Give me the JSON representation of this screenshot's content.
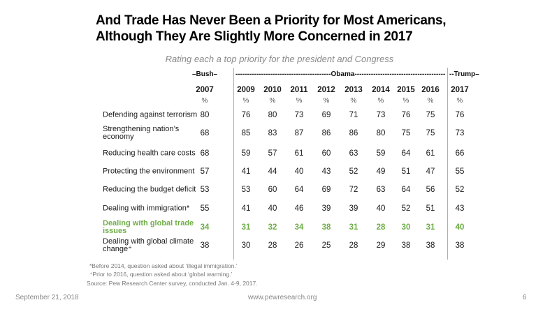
{
  "title_line1": "And Trade Has Never Been a Priority for Most Americans,",
  "title_line2": "Although They Are Slightly More Concerned in 2017",
  "subtitle": "Rating each a top priority for the president and Congress",
  "chart_data": {
    "type": "table",
    "groups": [
      "–Bush–",
      "-----------------------------------------Obama----------------------------------------",
      "--Trump–"
    ],
    "columns": [
      "2007",
      "2009",
      "2010",
      "2011",
      "2012",
      "2013",
      "2014",
      "2015",
      "2016",
      "2017"
    ],
    "unit": "%",
    "highlight_color": "#6fae47",
    "rows": [
      {
        "label": "Defending against terrorism",
        "values": [
          80,
          76,
          80,
          73,
          69,
          71,
          73,
          76,
          75,
          76
        ]
      },
      {
        "label": "Strengthening nation’s economy",
        "values": [
          68,
          85,
          83,
          87,
          86,
          86,
          80,
          75,
          75,
          73
        ]
      },
      {
        "label": "Reducing health care costs",
        "values": [
          68,
          59,
          57,
          61,
          60,
          63,
          59,
          64,
          61,
          66
        ]
      },
      {
        "label": "Protecting the environment",
        "values": [
          57,
          41,
          44,
          40,
          43,
          52,
          49,
          51,
          47,
          55
        ]
      },
      {
        "label": "Reducing the budget deficit",
        "values": [
          53,
          53,
          60,
          64,
          69,
          72,
          63,
          64,
          56,
          52
        ]
      },
      {
        "label": "Dealing with immigration*",
        "values": [
          55,
          41,
          40,
          46,
          39,
          39,
          40,
          52,
          51,
          43
        ]
      },
      {
        "label": "Dealing with global trade issues",
        "values": [
          34,
          31,
          32,
          34,
          38,
          31,
          28,
          30,
          31,
          40
        ],
        "highlight": true
      },
      {
        "label": "Dealing with global climate change⁺",
        "values": [
          38,
          30,
          28,
          26,
          25,
          28,
          29,
          38,
          38,
          38
        ]
      }
    ]
  },
  "notes": [
    "*Before 2014, question asked about ‘illegal immigration.’",
    "⁺Prior to 2016, question asked about ‘global warming.’",
    "Source: Pew Research Center survey, conducted Jan. 4-9, 2017."
  ],
  "footer": {
    "date": "September 21, 2018",
    "url": "www.pewresearch.org",
    "page": "6"
  }
}
